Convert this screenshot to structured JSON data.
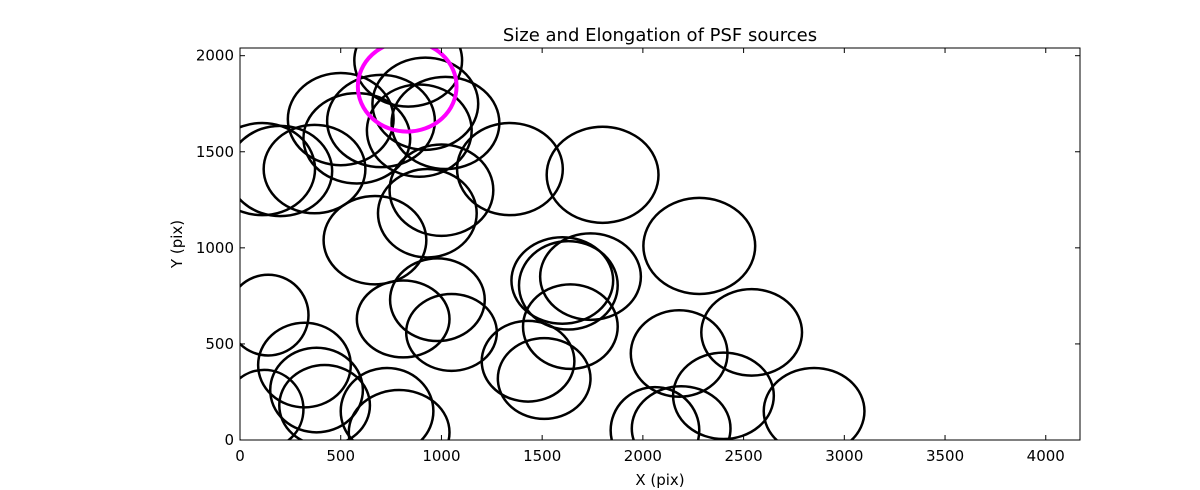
{
  "chart_data": {
    "type": "scatter",
    "title": "Size and Elongation of PSF sources",
    "xlabel": "X (pix)",
    "ylabel": "Y (pix)",
    "xlim": [
      0,
      4170
    ],
    "ylim": [
      0,
      2040
    ],
    "xticks": [
      0,
      500,
      1000,
      1500,
      2000,
      2500,
      3000,
      3500,
      4000
    ],
    "yticks": [
      0,
      500,
      1000,
      1500,
      2000
    ],
    "xtick_labels": [
      "0",
      "500",
      "1000",
      "1500",
      "2000",
      "2500",
      "3000",
      "3500",
      "4000"
    ],
    "ytick_labels": [
      "0",
      "500",
      "1000",
      "1500",
      "2000"
    ],
    "grid": false,
    "series": [
      {
        "marker": "ellipse",
        "color": "#000000",
        "points": [
          {
            "x": 835,
            "y": 1975,
            "w": 535,
            "h": 480
          },
          {
            "x": 500,
            "y": 1670,
            "w": 525,
            "h": 480
          },
          {
            "x": 700,
            "y": 1660,
            "w": 535,
            "h": 480
          },
          {
            "x": 920,
            "y": 1750,
            "w": 525,
            "h": 480
          },
          {
            "x": 1020,
            "y": 1650,
            "w": 535,
            "h": 480
          },
          {
            "x": 890,
            "y": 1610,
            "w": 520,
            "h": 480
          },
          {
            "x": 580,
            "y": 1570,
            "w": 530,
            "h": 470
          },
          {
            "x": 110,
            "y": 1410,
            "w": 525,
            "h": 480
          },
          {
            "x": 200,
            "y": 1400,
            "w": 515,
            "h": 470
          },
          {
            "x": 370,
            "y": 1410,
            "w": 505,
            "h": 460
          },
          {
            "x": 1000,
            "y": 1300,
            "w": 515,
            "h": 475
          },
          {
            "x": 1340,
            "y": 1410,
            "w": 525,
            "h": 480
          },
          {
            "x": 1800,
            "y": 1380,
            "w": 555,
            "h": 500
          },
          {
            "x": 930,
            "y": 1180,
            "w": 490,
            "h": 460
          },
          {
            "x": 670,
            "y": 1040,
            "w": 510,
            "h": 460
          },
          {
            "x": 2280,
            "y": 1010,
            "w": 555,
            "h": 500
          },
          {
            "x": 1740,
            "y": 850,
            "w": 500,
            "h": 450
          },
          {
            "x": 1600,
            "y": 830,
            "w": 505,
            "h": 450
          },
          {
            "x": 1630,
            "y": 805,
            "w": 490,
            "h": 460
          },
          {
            "x": 140,
            "y": 650,
            "w": 400,
            "h": 420
          },
          {
            "x": 980,
            "y": 730,
            "w": 470,
            "h": 430
          },
          {
            "x": 1640,
            "y": 590,
            "w": 470,
            "h": 440
          },
          {
            "x": 810,
            "y": 630,
            "w": 460,
            "h": 400
          },
          {
            "x": 1050,
            "y": 560,
            "w": 450,
            "h": 400
          },
          {
            "x": 2540,
            "y": 560,
            "w": 500,
            "h": 450
          },
          {
            "x": 2180,
            "y": 450,
            "w": 480,
            "h": 450
          },
          {
            "x": 320,
            "y": 390,
            "w": 460,
            "h": 440
          },
          {
            "x": 1430,
            "y": 410,
            "w": 460,
            "h": 420
          },
          {
            "x": 1510,
            "y": 320,
            "w": 460,
            "h": 420
          },
          {
            "x": 2400,
            "y": 230,
            "w": 500,
            "h": 450
          },
          {
            "x": 2850,
            "y": 150,
            "w": 500,
            "h": 450
          },
          {
            "x": 120,
            "y": 160,
            "w": 390,
            "h": 410
          },
          {
            "x": 380,
            "y": 260,
            "w": 460,
            "h": 440
          },
          {
            "x": 420,
            "y": 180,
            "w": 450,
            "h": 420
          },
          {
            "x": 730,
            "y": 150,
            "w": 460,
            "h": 450
          },
          {
            "x": 790,
            "y": 40,
            "w": 500,
            "h": 440
          },
          {
            "x": 2060,
            "y": 50,
            "w": 440,
            "h": 450
          },
          {
            "x": 2190,
            "y": 60,
            "w": 490,
            "h": 440
          }
        ]
      },
      {
        "marker": "ellipse-highlight",
        "color": "#ff00ff",
        "points": [
          {
            "x": 830,
            "y": 1840,
            "w": 490,
            "h": 470
          }
        ]
      }
    ]
  }
}
